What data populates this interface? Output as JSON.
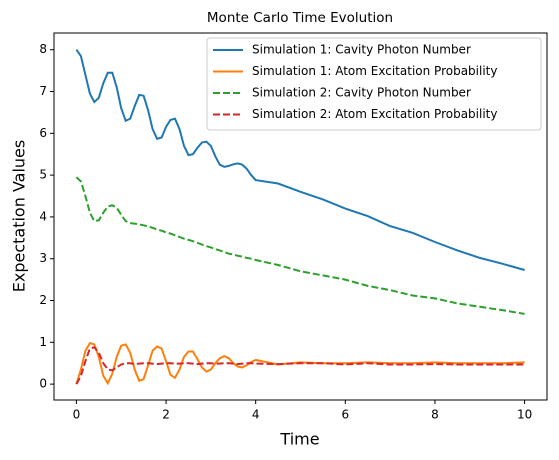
{
  "chart_data": {
    "type": "line",
    "title": "Monte Carlo Time Evolution",
    "xlabel": "Time",
    "ylabel": "Expectation Values",
    "x": [
      0,
      0.1,
      0.2,
      0.3,
      0.4,
      0.5,
      0.6,
      0.7,
      0.8,
      0.9,
      1.0,
      1.1,
      1.2,
      1.3,
      1.4,
      1.5,
      1.6,
      1.7,
      1.8,
      1.9,
      2.0,
      2.1,
      2.2,
      2.3,
      2.4,
      2.5,
      2.6,
      2.7,
      2.8,
      2.9,
      3.0,
      3.1,
      3.2,
      3.3,
      3.4,
      3.5,
      3.6,
      3.7,
      3.8,
      3.9,
      4.0,
      4.5,
      5.0,
      5.5,
      6.0,
      6.5,
      7.0,
      7.5,
      8.0,
      8.5,
      9.0,
      9.5,
      10
    ],
    "series": [
      {
        "name": "Simulation 1: Cavity Photon Number",
        "color": "#1f77b4",
        "linestyle": "solid",
        "values": [
          8.0,
          7.85,
          7.4,
          6.95,
          6.75,
          6.85,
          7.2,
          7.45,
          7.45,
          7.1,
          6.6,
          6.3,
          6.35,
          6.65,
          6.92,
          6.9,
          6.55,
          6.1,
          5.87,
          5.9,
          6.15,
          6.32,
          6.35,
          6.1,
          5.7,
          5.48,
          5.5,
          5.65,
          5.78,
          5.8,
          5.7,
          5.45,
          5.25,
          5.2,
          5.22,
          5.26,
          5.28,
          5.25,
          5.15,
          5.0,
          4.88,
          4.8,
          4.6,
          4.42,
          4.2,
          4.02,
          3.78,
          3.62,
          3.4,
          3.2,
          3.02,
          2.88,
          2.73
        ]
      },
      {
        "name": "Simulation 1: Atom Excitation Probability",
        "color": "#ff7f0e",
        "linestyle": "solid",
        "values": [
          0,
          0.35,
          0.8,
          0.98,
          0.95,
          0.65,
          0.2,
          0.02,
          0.25,
          0.65,
          0.92,
          0.95,
          0.75,
          0.35,
          0.08,
          0.12,
          0.45,
          0.8,
          0.9,
          0.85,
          0.55,
          0.22,
          0.15,
          0.35,
          0.65,
          0.78,
          0.78,
          0.6,
          0.4,
          0.3,
          0.35,
          0.5,
          0.62,
          0.67,
          0.62,
          0.5,
          0.42,
          0.4,
          0.45,
          0.53,
          0.58,
          0.47,
          0.52,
          0.5,
          0.5,
          0.52,
          0.5,
          0.5,
          0.52,
          0.5,
          0.5,
          0.5,
          0.52
        ]
      },
      {
        "name": "Simulation 2: Cavity Photon Number",
        "color": "#2ca02c",
        "linestyle": "dashed",
        "values": [
          4.95,
          4.85,
          4.5,
          4.1,
          3.9,
          3.92,
          4.1,
          4.25,
          4.28,
          4.22,
          4.05,
          3.9,
          3.85,
          3.84,
          3.82,
          3.8,
          3.77,
          3.74,
          3.7,
          3.67,
          3.63,
          3.6,
          3.56,
          3.52,
          3.48,
          3.45,
          3.42,
          3.38,
          3.34,
          3.3,
          3.27,
          3.23,
          3.2,
          3.16,
          3.12,
          3.1,
          3.07,
          3.05,
          3.02,
          3.0,
          2.97,
          2.85,
          2.7,
          2.6,
          2.5,
          2.35,
          2.25,
          2.12,
          2.05,
          1.93,
          1.85,
          1.77,
          1.68
        ]
      },
      {
        "name": "Simulation 2: Atom Excitation Probability",
        "color": "#d62728",
        "linestyle": "dashed",
        "values": [
          0,
          0.2,
          0.55,
          0.85,
          0.88,
          0.75,
          0.5,
          0.35,
          0.33,
          0.4,
          0.47,
          0.5,
          0.5,
          0.48,
          0.49,
          0.5,
          0.5,
          0.49,
          0.48,
          0.49,
          0.5,
          0.5,
          0.49,
          0.49,
          0.5,
          0.5,
          0.49,
          0.48,
          0.49,
          0.5,
          0.5,
          0.49,
          0.49,
          0.5,
          0.5,
          0.49,
          0.48,
          0.49,
          0.5,
          0.5,
          0.49,
          0.48,
          0.5,
          0.5,
          0.47,
          0.5,
          0.47,
          0.47,
          0.48,
          0.47,
          0.47,
          0.47,
          0.47
        ]
      }
    ],
    "xlim": [
      -0.5,
      10.5
    ],
    "xticks": [
      0,
      2,
      4,
      6,
      8,
      10
    ],
    "ylim": [
      -0.38,
      8.4
    ],
    "yticks": [
      0,
      1,
      2,
      3,
      4,
      5,
      6,
      7,
      8
    ],
    "grid": false,
    "legend": "upper right"
  }
}
